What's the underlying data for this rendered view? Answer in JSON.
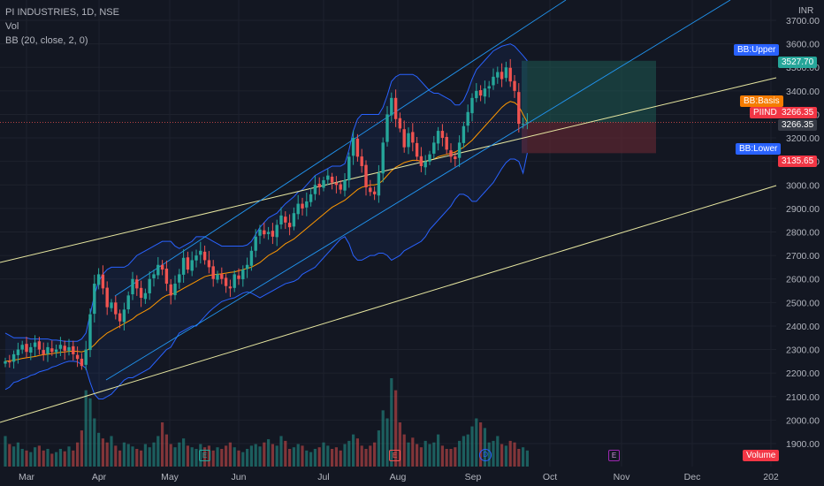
{
  "legend": {
    "symbol_line": "PI INDUSTRIES, 1D, NSE",
    "vol_label": "Vol",
    "bb_label": "BB (20, close, 2, 0)"
  },
  "tags": {
    "currency": "INR",
    "bb_upper": "BB:Upper",
    "bb_basis": "BB:Basis",
    "bb_lower": "BB:Lower",
    "symbol": "PIIND",
    "volume": "Volume",
    "event_e": "E",
    "event_d": "D"
  },
  "colors": {
    "background": "#131722",
    "up": "#26a69a",
    "down": "#ef5350",
    "bb_band": "#2962ff",
    "bb_basis": "#ff9800",
    "trendline": "#e6e6a0",
    "channel": "#2196f3",
    "target_zone": "#1e5a52",
    "stop_zone": "#5c2730",
    "price_tag": "#f23645",
    "label_blue": "#2962ff",
    "label_orange": "#f57c00",
    "grid": "#1e222d"
  },
  "chart_data": {
    "type": "candlestick",
    "title": "PI INDUSTRIES, 1D, NSE",
    "ylabel": "INR",
    "ylim": [
      1860,
      3760
    ],
    "y_ticks": [
      1900,
      2000,
      2100,
      2200,
      2300,
      2400,
      2500,
      2600,
      2700,
      2800,
      2900,
      3000,
      3100,
      3200,
      3300,
      3400,
      3500,
      3600,
      3700
    ],
    "y_tick_labels": [
      "1900.00",
      "2000.00",
      "2100.00",
      "2200.00",
      "2300.00",
      "2400.00",
      "2500.00",
      "2600.00",
      "2700.00",
      "2800.00",
      "2900.00",
      "3000.00",
      "3100.00",
      "3200.00",
      "3300.00",
      "3400.00",
      "3500.00",
      "3600.00",
      "3700.00"
    ],
    "x_tick_labels": [
      "Mar",
      "Apr",
      "May",
      "Jun",
      "Jul",
      "Aug",
      "Sep",
      "Oct",
      "Nov",
      "Dec",
      "202"
    ],
    "grid": true,
    "price_labels": {
      "bb_upper": "3527.70",
      "bb_basis": "3266.35",
      "last": "3266.35",
      "bb_lower": "3135.65"
    },
    "close_series": [
      2250,
      2245,
      2280,
      2300,
      2320,
      2290,
      2310,
      2330,
      2300,
      2280,
      2310,
      2290,
      2300,
      2320,
      2295,
      2310,
      2280,
      2260,
      2230,
      2300,
      2450,
      2580,
      2620,
      2560,
      2480,
      2500,
      2450,
      2420,
      2470,
      2530,
      2600,
      2560,
      2520,
      2540,
      2600,
      2620,
      2660,
      2640,
      2580,
      2530,
      2580,
      2620,
      2690,
      2640,
      2680,
      2700,
      2720,
      2680,
      2650,
      2600,
      2620,
      2600,
      2570,
      2560,
      2620,
      2600,
      2640,
      2660,
      2720,
      2780,
      2810,
      2790,
      2800,
      2780,
      2830,
      2870,
      2840,
      2820,
      2880,
      2920,
      2900,
      2930,
      2960,
      3000,
      2990,
      3020,
      3040,
      3010,
      3000,
      2980,
      3020,
      3120,
      3200,
      3120,
      3080,
      2990,
      2970,
      2960,
      3050,
      3180,
      3300,
      3370,
      3280,
      3240,
      3160,
      3220,
      3180,
      3120,
      3080,
      3100,
      3130,
      3180,
      3230,
      3200,
      3150,
      3120,
      3110,
      3180,
      3250,
      3310,
      3370,
      3400,
      3380,
      3410,
      3420,
      3460,
      3480,
      3450,
      3500,
      3440,
      3400,
      3260,
      3260,
      3266
    ],
    "volume_series": [
      38,
      28,
      25,
      30,
      22,
      20,
      18,
      24,
      26,
      20,
      22,
      16,
      18,
      22,
      19,
      25,
      20,
      30,
      45,
      95,
      85,
      60,
      42,
      35,
      30,
      38,
      26,
      20,
      30,
      28,
      25,
      22,
      20,
      28,
      24,
      30,
      38,
      55,
      40,
      28,
      24,
      30,
      35,
      26,
      24,
      22,
      28,
      24,
      26,
      20,
      24,
      22,
      26,
      30,
      24,
      20,
      18,
      22,
      26,
      28,
      25,
      30,
      34,
      28,
      26,
      38,
      32,
      22,
      24,
      28,
      26,
      20,
      18,
      22,
      24,
      30,
      26,
      22,
      24,
      20,
      28,
      32,
      40,
      35,
      26,
      22,
      26,
      30,
      45,
      70,
      60,
      110,
      95,
      55,
      40,
      30,
      36,
      28,
      24,
      32,
      28,
      30,
      40,
      26,
      22,
      22,
      24,
      32,
      38,
      40,
      50,
      60,
      55,
      48,
      30,
      32,
      38,
      28,
      26,
      32,
      30,
      22,
      24,
      20
    ],
    "bollinger": {
      "upper": [
        2370,
        2360,
        2350,
        2350,
        2350,
        2350,
        2345,
        2345,
        2345,
        2345,
        2345,
        2340,
        2340,
        2338,
        2335,
        2335,
        2335,
        2335,
        2345,
        2370,
        2450,
        2530,
        2590,
        2620,
        2640,
        2650,
        2650,
        2650,
        2650,
        2660,
        2680,
        2700,
        2710,
        2720,
        2730,
        2740,
        2750,
        2760,
        2760,
        2760,
        2740,
        2730,
        2740,
        2750,
        2760,
        2780,
        2780,
        2780,
        2770,
        2760,
        2750,
        2740,
        2740,
        2740,
        2740,
        2740,
        2740,
        2745,
        2760,
        2790,
        2820,
        2840,
        2860,
        2870,
        2880,
        2900,
        2920,
        2935,
        2950,
        2970,
        2980,
        3000,
        3020,
        3040,
        3050,
        3060,
        3070,
        3080,
        3080,
        3080,
        3090,
        3150,
        3230,
        3280,
        3300,
        3300,
        3300,
        3300,
        3300,
        3330,
        3380,
        3440,
        3460,
        3470,
        3470,
        3470,
        3470,
        3460,
        3440,
        3420,
        3400,
        3390,
        3390,
        3380,
        3370,
        3360,
        3340,
        3340,
        3360,
        3400,
        3450,
        3490,
        3510,
        3530,
        3550,
        3570,
        3580,
        3590,
        3595,
        3600,
        3590,
        3570,
        3550,
        3528
      ],
      "basis": [
        2250,
        2252,
        2255,
        2258,
        2262,
        2265,
        2268,
        2270,
        2275,
        2278,
        2280,
        2283,
        2285,
        2288,
        2290,
        2292,
        2293,
        2292,
        2290,
        2295,
        2305,
        2320,
        2340,
        2355,
        2370,
        2380,
        2390,
        2400,
        2410,
        2420,
        2430,
        2445,
        2455,
        2465,
        2475,
        2490,
        2505,
        2520,
        2530,
        2535,
        2540,
        2550,
        2560,
        2570,
        2580,
        2590,
        2600,
        2610,
        2615,
        2618,
        2620,
        2622,
        2625,
        2628,
        2630,
        2635,
        2640,
        2645,
        2650,
        2660,
        2670,
        2685,
        2700,
        2710,
        2720,
        2735,
        2750,
        2760,
        2770,
        2785,
        2800,
        2815,
        2830,
        2845,
        2860,
        2875,
        2890,
        2905,
        2915,
        2925,
        2935,
        2950,
        2965,
        2980,
        2990,
        2995,
        3000,
        3000,
        3005,
        3020,
        3040,
        3060,
        3075,
        3085,
        3095,
        3100,
        3105,
        3105,
        3100,
        3100,
        3105,
        3110,
        3120,
        3125,
        3130,
        3135,
        3140,
        3150,
        3160,
        3175,
        3190,
        3210,
        3230,
        3250,
        3270,
        3290,
        3310,
        3330,
        3345,
        3355,
        3350,
        3335,
        3300,
        3266
      ],
      "lower": [
        2130,
        2140,
        2160,
        2165,
        2175,
        2180,
        2190,
        2195,
        2205,
        2210,
        2215,
        2225,
        2230,
        2238,
        2245,
        2250,
        2250,
        2248,
        2235,
        2220,
        2160,
        2110,
        2090,
        2090,
        2100,
        2110,
        2130,
        2150,
        2170,
        2180,
        2180,
        2190,
        2200,
        2210,
        2220,
        2240,
        2260,
        2280,
        2300,
        2310,
        2340,
        2370,
        2380,
        2390,
        2400,
        2400,
        2420,
        2440,
        2460,
        2476,
        2490,
        2504,
        2510,
        2516,
        2520,
        2530,
        2540,
        2545,
        2540,
        2530,
        2520,
        2530,
        2540,
        2550,
        2560,
        2570,
        2580,
        2585,
        2590,
        2600,
        2620,
        2630,
        2640,
        2650,
        2670,
        2690,
        2710,
        2730,
        2750,
        2770,
        2780,
        2750,
        2700,
        2680,
        2680,
        2690,
        2700,
        2700,
        2710,
        2710,
        2700,
        2680,
        2690,
        2700,
        2720,
        2730,
        2740,
        2750,
        2760,
        2780,
        2810,
        2830,
        2850,
        2870,
        2890,
        2910,
        2940,
        2960,
        2960,
        2950,
        2930,
        2930,
        2950,
        2970,
        2990,
        3010,
        3040,
        3070,
        3095,
        3110,
        3110,
        3100,
        3050,
        3136
      ]
    }
  }
}
